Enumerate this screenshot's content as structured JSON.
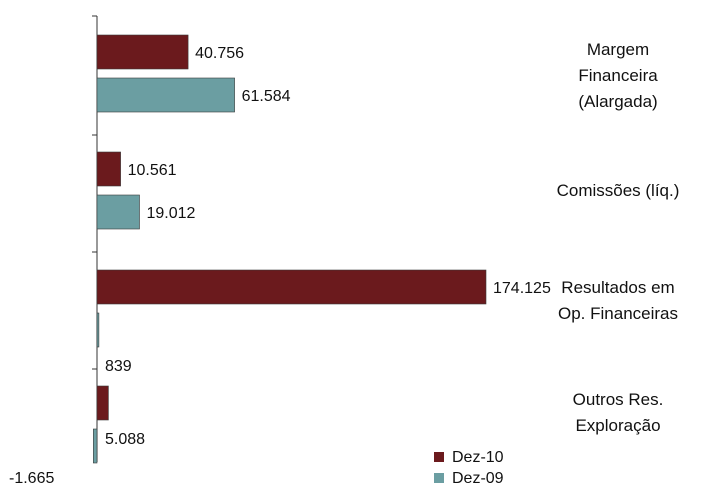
{
  "chart_data": {
    "type": "bar",
    "orientation": "horizontal",
    "categories": [
      [
        "Margem",
        "Financeira",
        "(Alargada)"
      ],
      [
        "Comissões (líq.)"
      ],
      [
        "Resultados em",
        "Op. Financeiras"
      ],
      [
        "Outros Res.",
        "Exploração"
      ]
    ],
    "series": [
      {
        "name": "Dez-10",
        "color": "#6b1a1d",
        "values": [
          40756,
          10561,
          174125,
          5088
        ],
        "labels": [
          "40.756",
          "10.561",
          "174.125",
          "5.088"
        ]
      },
      {
        "name": "Dez-09",
        "color": "#6b9ea2",
        "values": [
          61584,
          19012,
          839,
          -1665
        ],
        "labels": [
          "61.584",
          "19.012",
          "839",
          "-1.665"
        ]
      }
    ],
    "title": "",
    "xlabel": "",
    "ylabel": "",
    "xlim": [
      -1665,
      174125
    ],
    "grid": false,
    "legend_position": "bottom-right"
  }
}
